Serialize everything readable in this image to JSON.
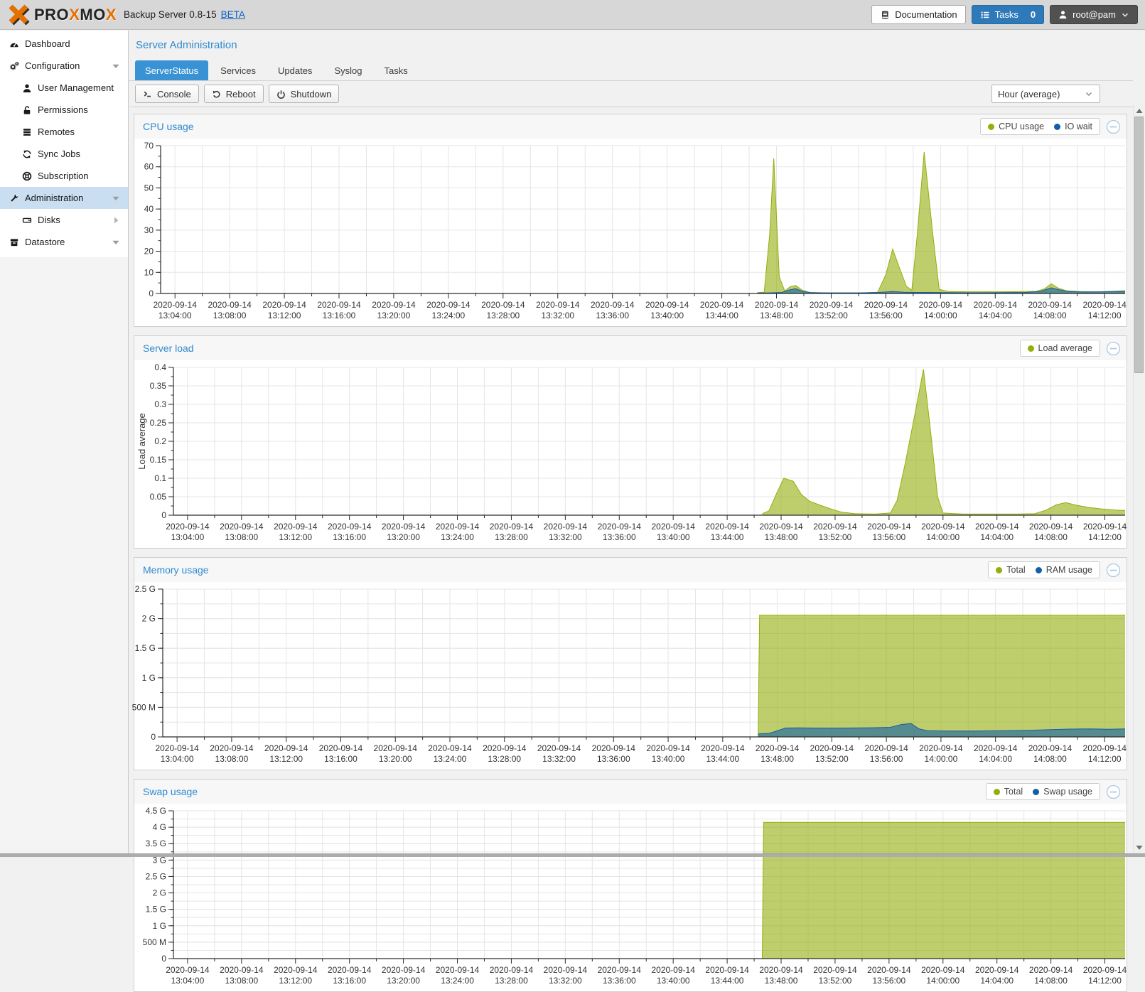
{
  "colors": {
    "accent": "#3892d4",
    "chart_green": "#94ae0a",
    "chart_blue": "#115fa6",
    "selected_row": "#c9def1",
    "brand_orange": "#e57000"
  },
  "header": {
    "brand_segments": [
      {
        "t": "PRO",
        "c": "#232323"
      },
      {
        "t": "X",
        "c": "#e57000"
      },
      {
        "t": "MO",
        "c": "#232323"
      },
      {
        "t": "X",
        "c": "#e57000"
      }
    ],
    "product": "Backup Server 0.8-15",
    "beta": "BETA",
    "documentation_label": "Documentation",
    "tasks_label": "Tasks",
    "tasks_count": "0",
    "user_label": "root@pam"
  },
  "sidebar": {
    "items": [
      {
        "label": "Dashboard",
        "icon": "gauge",
        "level": 0
      },
      {
        "label": "Configuration",
        "icon": "gears",
        "level": 0,
        "caret": "down"
      },
      {
        "label": "User Management",
        "icon": "user",
        "level": 1
      },
      {
        "label": "Permissions",
        "icon": "unlock",
        "level": 1
      },
      {
        "label": "Remotes",
        "icon": "remotes",
        "level": 1
      },
      {
        "label": "Sync Jobs",
        "icon": "sync",
        "level": 1
      },
      {
        "label": "Subscription",
        "icon": "lifering",
        "level": 1
      },
      {
        "label": "Administration",
        "icon": "wrench",
        "level": 0,
        "caret": "down",
        "selected": true
      },
      {
        "label": "Disks",
        "icon": "disk",
        "level": 1,
        "caret": "right"
      },
      {
        "label": "Datastore",
        "icon": "datastore",
        "level": 0,
        "caret": "down"
      }
    ]
  },
  "main": {
    "title": "Server Administration",
    "tabs": [
      {
        "label": "ServerStatus",
        "active": true
      },
      {
        "label": "Services"
      },
      {
        "label": "Updates"
      },
      {
        "label": "Syslog"
      },
      {
        "label": "Tasks"
      }
    ],
    "toolbar": {
      "console": "Console",
      "reboot": "Reboot",
      "shutdown": "Shutdown",
      "range": "Hour (average)"
    }
  },
  "chart_data": [
    {
      "type": "area",
      "title": "CPU usage",
      "legend": [
        {
          "name": "CPU usage",
          "color": "#94ae0a"
        },
        {
          "name": "IO wait",
          "color": "#115fa6"
        }
      ],
      "ylabel": "",
      "ylim": [
        0,
        70
      ],
      "y_ticks": [
        {
          "v": 0,
          "label": "0"
        },
        {
          "v": 10,
          "label": "10"
        },
        {
          "v": 20,
          "label": "20"
        },
        {
          "v": 30,
          "label": "30"
        },
        {
          "v": 40,
          "label": "40"
        },
        {
          "v": 50,
          "label": "50"
        },
        {
          "v": 60,
          "label": "60"
        },
        {
          "v": 70,
          "label": "70"
        }
      ],
      "y_minor_step": 5,
      "y_minor_grid": false,
      "x_domain": [
        2.95,
        73.5
      ],
      "x_major_step": 4,
      "x_minor_step": 2,
      "x_date": "2020-09-14",
      "x_base_hour": 13,
      "series": [
        {
          "name": "CPU usage",
          "color": "#94ae0a",
          "points": [
            [
              46.6,
              0.4
            ],
            [
              47.1,
              0.6
            ],
            [
              47.5,
              28
            ],
            [
              47.8,
              64
            ],
            [
              48.2,
              8
            ],
            [
              48.6,
              1.2
            ],
            [
              49.0,
              3.2
            ],
            [
              49.4,
              3.8
            ],
            [
              49.9,
              1.5
            ],
            [
              50.4,
              0.5
            ],
            [
              51.5,
              0.3
            ],
            [
              53,
              0.3
            ],
            [
              54.5,
              0.3
            ],
            [
              55.4,
              0.6
            ],
            [
              56.0,
              9
            ],
            [
              56.5,
              21
            ],
            [
              57.0,
              12
            ],
            [
              57.5,
              3.5
            ],
            [
              57.9,
              1.5
            ],
            [
              58.3,
              28
            ],
            [
              58.8,
              67
            ],
            [
              59.4,
              30
            ],
            [
              59.9,
              2
            ],
            [
              60.5,
              1
            ],
            [
              62,
              0.8
            ],
            [
              64,
              0.8
            ],
            [
              66,
              0.9
            ],
            [
              67.0,
              1.0
            ],
            [
              67.6,
              2.2
            ],
            [
              68.1,
              4.6
            ],
            [
              68.6,
              2.6
            ],
            [
              69.2,
              1.3
            ],
            [
              70.2,
              0.9
            ],
            [
              71.5,
              0.8
            ],
            [
              72.5,
              1.0
            ],
            [
              73.5,
              1.3
            ]
          ]
        },
        {
          "name": "IO wait",
          "color": "#115fa6",
          "points": [
            [
              46.6,
              0.2
            ],
            [
              47.5,
              0.3
            ],
            [
              48.4,
              0.5
            ],
            [
              48.9,
              1.6
            ],
            [
              49.4,
              2.3
            ],
            [
              49.9,
              1.0
            ],
            [
              50.5,
              0.4
            ],
            [
              52,
              0.3
            ],
            [
              54,
              0.3
            ],
            [
              55.5,
              0.5
            ],
            [
              56.5,
              0.9
            ],
            [
              57.3,
              0.6
            ],
            [
              58.2,
              0.5
            ],
            [
              59.2,
              0.5
            ],
            [
              60.5,
              0.4
            ],
            [
              62.5,
              0.35
            ],
            [
              64.5,
              0.4
            ],
            [
              66.2,
              0.5
            ],
            [
              67.3,
              1.0
            ],
            [
              68.1,
              2.7
            ],
            [
              68.7,
              1.7
            ],
            [
              69.4,
              0.9
            ],
            [
              70.5,
              0.7
            ],
            [
              71.8,
              0.8
            ],
            [
              73.5,
              1.0
            ]
          ]
        }
      ]
    },
    {
      "type": "area",
      "title": "Server load",
      "legend": [
        {
          "name": "Load average",
          "color": "#94ae0a"
        }
      ],
      "ylabel": "Load average",
      "ylim": [
        0,
        0.4
      ],
      "y_ticks": [
        {
          "v": 0,
          "label": "0"
        },
        {
          "v": 0.05,
          "label": "0.05"
        },
        {
          "v": 0.1,
          "label": "0.1"
        },
        {
          "v": 0.15,
          "label": "0.15"
        },
        {
          "v": 0.2,
          "label": "0.2"
        },
        {
          "v": 0.25,
          "label": "0.25"
        },
        {
          "v": 0.3,
          "label": "0.3"
        },
        {
          "v": 0.35,
          "label": "0.35"
        },
        {
          "v": 0.4,
          "label": "0.4"
        }
      ],
      "y_minor_step": 0.025,
      "y_minor_grid": false,
      "x_domain": [
        2.95,
        73.5
      ],
      "x_major_step": 4,
      "x_minor_step": 2,
      "x_date": "2020-09-14",
      "x_base_hour": 13,
      "series": [
        {
          "name": "Load average",
          "color": "#94ae0a",
          "points": [
            [
              46.6,
              0.004
            ],
            [
              47.1,
              0.012
            ],
            [
              47.7,
              0.062
            ],
            [
              48.2,
              0.1
            ],
            [
              48.9,
              0.092
            ],
            [
              49.5,
              0.056
            ],
            [
              50.1,
              0.038
            ],
            [
              50.9,
              0.027
            ],
            [
              51.7,
              0.017
            ],
            [
              52.5,
              0.008
            ],
            [
              53.5,
              0.004
            ],
            [
              55,
              0.003
            ],
            [
              56.1,
              0.006
            ],
            [
              56.6,
              0.04
            ],
            [
              57.2,
              0.14
            ],
            [
              57.9,
              0.27
            ],
            [
              58.55,
              0.395
            ],
            [
              59.1,
              0.22
            ],
            [
              59.6,
              0.05
            ],
            [
              60.0,
              0.006
            ],
            [
              61.5,
              0.003
            ],
            [
              63.5,
              0.003
            ],
            [
              65.5,
              0.003
            ],
            [
              66.8,
              0.004
            ],
            [
              67.6,
              0.013
            ],
            [
              68.4,
              0.028
            ],
            [
              69.1,
              0.034
            ],
            [
              69.9,
              0.027
            ],
            [
              70.8,
              0.021
            ],
            [
              71.8,
              0.017
            ],
            [
              72.8,
              0.014
            ],
            [
              73.5,
              0.013
            ]
          ]
        }
      ]
    },
    {
      "type": "area",
      "title": "Memory usage",
      "legend": [
        {
          "name": "Total",
          "color": "#94ae0a"
        },
        {
          "name": "RAM usage",
          "color": "#115fa6"
        }
      ],
      "ylabel": "",
      "ylim": [
        0,
        2500000000
      ],
      "y_ticks": [
        {
          "v": 0,
          "label": "0"
        },
        {
          "v": 500000000,
          "label": "500 M"
        },
        {
          "v": 1000000000,
          "label": "1 G"
        },
        {
          "v": 1500000000,
          "label": "1.5 G"
        },
        {
          "v": 2000000000,
          "label": "2 G"
        },
        {
          "v": 2500000000,
          "label": "2.5 G"
        }
      ],
      "y_minor_step": 250000000,
      "y_minor_grid": true,
      "x_domain": [
        2.95,
        73.5
      ],
      "x_major_step": 4,
      "x_minor_step": 2,
      "x_date": "2020-09-14",
      "x_base_hour": 13,
      "series": [
        {
          "name": "Total",
          "color": "#94ae0a",
          "points": [
            [
              46.6,
              0
            ],
            [
              46.7,
              2060000000
            ],
            [
              73.5,
              2060000000
            ]
          ]
        },
        {
          "name": "RAM usage",
          "color": "#115fa6",
          "points": [
            [
              46.6,
              52000000
            ],
            [
              47.4,
              60000000
            ],
            [
              47.9,
              95000000
            ],
            [
              48.6,
              150000000
            ],
            [
              49.6,
              153000000
            ],
            [
              51,
              150000000
            ],
            [
              53,
              150000000
            ],
            [
              55,
              155000000
            ],
            [
              56.3,
              162000000
            ],
            [
              57.1,
              210000000
            ],
            [
              57.8,
              226000000
            ],
            [
              58.4,
              135000000
            ],
            [
              59,
              105000000
            ],
            [
              60.5,
              100000000
            ],
            [
              62.5,
              100000000
            ],
            [
              64.5,
              105000000
            ],
            [
              66.5,
              112000000
            ],
            [
              68,
              122000000
            ],
            [
              69.5,
              132000000
            ],
            [
              71,
              136000000
            ],
            [
              72.3,
              130000000
            ],
            [
              73.5,
              136000000
            ]
          ]
        }
      ]
    },
    {
      "type": "area",
      "title": "Swap usage",
      "legend": [
        {
          "name": "Total",
          "color": "#94ae0a"
        },
        {
          "name": "Swap usage",
          "color": "#115fa6"
        }
      ],
      "ylabel": "",
      "ylim": [
        0,
        4500000000
      ],
      "y_ticks": [
        {
          "v": 0,
          "label": "0"
        },
        {
          "v": 500000000,
          "label": "500 M"
        },
        {
          "v": 1000000000,
          "label": "1 G"
        },
        {
          "v": 1500000000,
          "label": "1.5 G"
        },
        {
          "v": 2000000000,
          "label": "2 G"
        },
        {
          "v": 2500000000,
          "label": "2.5 G"
        },
        {
          "v": 3000000000,
          "label": "3 G"
        },
        {
          "v": 3500000000,
          "label": "3.5 G"
        },
        {
          "v": 4000000000,
          "label": "4 G"
        },
        {
          "v": 4500000000,
          "label": "4.5 G"
        }
      ],
      "y_minor_step": 250000000,
      "y_minor_grid": true,
      "x_domain": [
        2.95,
        73.5
      ],
      "x_major_step": 4,
      "x_minor_step": 2,
      "x_date": "2020-09-14",
      "x_base_hour": 13,
      "series": [
        {
          "name": "Total",
          "color": "#94ae0a",
          "points": [
            [
              46.6,
              0
            ],
            [
              46.7,
              4150000000
            ],
            [
              73.5,
              4150000000
            ]
          ]
        },
        {
          "name": "Swap usage",
          "color": "#115fa6",
          "points": [
            [
              46.6,
              0
            ],
            [
              73.5,
              0
            ]
          ]
        }
      ]
    }
  ]
}
